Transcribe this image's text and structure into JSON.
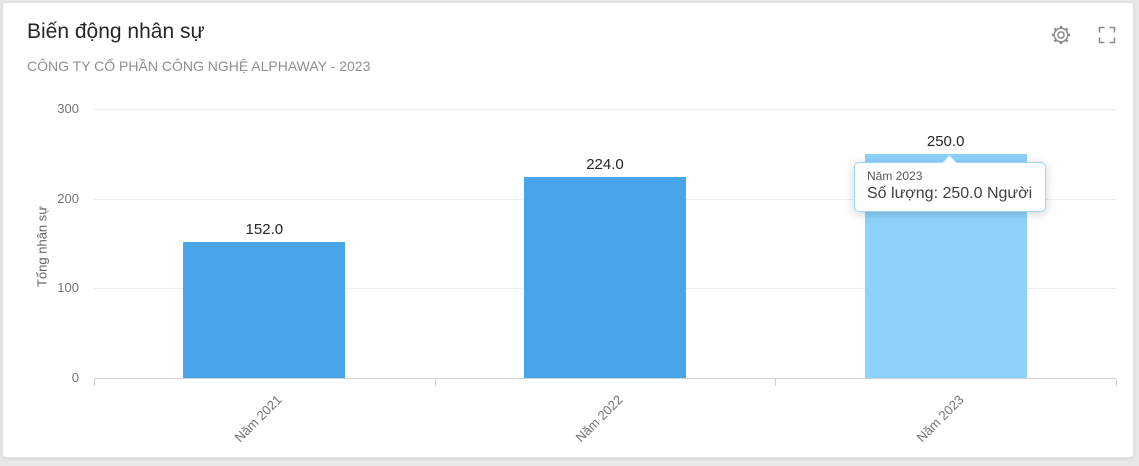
{
  "header": {
    "title": "Biến động nhân sự",
    "subtitle": "CÔNG TY CỔ PHẦN CÔNG NGHỆ ALPHAWAY - 2023"
  },
  "toolbar": {
    "icons": [
      "settings-icon",
      "fullscreen-icon"
    ]
  },
  "chart_data": {
    "type": "bar",
    "title": "Biến động nhân sự",
    "subtitle": "CÔNG TY CỔ PHẦN CÔNG NGHỆ ALPHAWAY - 2023",
    "categories": [
      "Năm 2021",
      "Năm 2022",
      "Năm 2023"
    ],
    "values": [
      152,
      224,
      250
    ],
    "value_labels": [
      "152.0",
      "224.0",
      "250.0"
    ],
    "xlabel": "",
    "ylabel": "Tổng nhân sự",
    "ylim": [
      0,
      300
    ],
    "yticks": [
      0,
      100,
      200,
      300
    ],
    "unit": "Người",
    "highlighted_index": 2,
    "grid": true,
    "legend_position": "none",
    "bar_color": "#49a5e9",
    "bar_highlight_color": "#8dd2fb"
  },
  "tooltip": {
    "title": "Năm 2023",
    "value_line": "Số lượng: 250.0 Người"
  }
}
